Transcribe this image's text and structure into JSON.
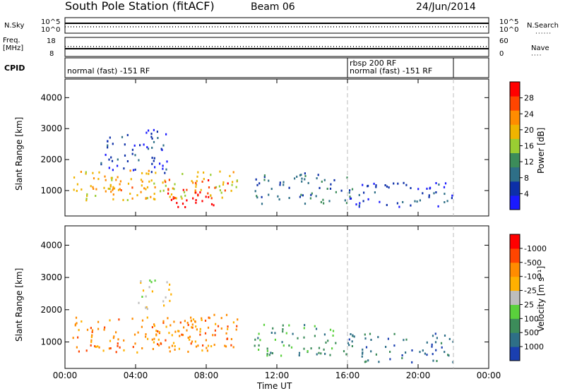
{
  "header": {
    "title": "South Pole Station (fitACF)",
    "beam": "Beam 06",
    "date": "24/Jun/2014"
  },
  "panels": {
    "nsky_label": "N.Sky",
    "nsearch_label": "N.Search",
    "nsky_ticks": [
      "10^5",
      "10^0"
    ],
    "nsearch_ticks": [
      "10^5",
      "10^0"
    ],
    "freq_label_1": "Freq.",
    "freq_label_2": "[MHz]",
    "freq_ticks": [
      "18",
      "8"
    ],
    "nave_label": "Nave",
    "nave_ticks": [
      "60",
      "0"
    ],
    "cpid_label": "CPID",
    "cpid_segments": [
      "normal (fast) -151 RF",
      "rbsp 200 RF",
      "normal (fast) -151 RF"
    ]
  },
  "chart_data": [
    {
      "type": "heatmap",
      "name": "power",
      "xlabel": "Time UT",
      "ylabel": "Slant Range [km]",
      "xticks": [
        "00:00",
        "04:00",
        "08:00",
        "12:00",
        "16:00",
        "20:00",
        "00:00"
      ],
      "yticks": [
        "1000",
        "2000",
        "3000",
        "4000"
      ],
      "ylim": [
        180,
        4600
      ],
      "xlim_hours": [
        0,
        24
      ],
      "colorbar_label": "Power [dB]",
      "colorbar_ticks": [
        "4",
        "8",
        "12",
        "16",
        "20",
        "24",
        "28"
      ],
      "colors": [
        "#1a1aff",
        "#0c2fa8",
        "#2e6f87",
        "#3c8c5a",
        "#9acd32",
        "#f0b400",
        "#ff8c00",
        "#ff4500",
        "#ff0000"
      ],
      "regions": [
        {
          "t0": 0.4,
          "t1": 9.8,
          "r0": 700,
          "r1": 1700,
          "level": 5
        },
        {
          "t0": 5.8,
          "t1": 9.2,
          "r0": 500,
          "r1": 1400,
          "level": 8
        },
        {
          "t0": 2.2,
          "t1": 6.0,
          "r0": 900,
          "r1": 1500,
          "level": 6
        },
        {
          "t0": 2.0,
          "t1": 5.8,
          "r0": 1600,
          "r1": 3000,
          "level": 1
        },
        {
          "t0": 10.7,
          "t1": 16.3,
          "r0": 600,
          "r1": 1600,
          "level": 2
        },
        {
          "t0": 16.0,
          "t1": 22.0,
          "r0": 500,
          "r1": 1300,
          "level": 1
        }
      ]
    },
    {
      "type": "heatmap",
      "name": "velocity",
      "xlabel": "Time UT",
      "ylabel": "Slant Range [km]",
      "xticks": [
        "00:00",
        "04:00",
        "08:00",
        "12:00",
        "16:00",
        "20:00",
        "00:00"
      ],
      "yticks": [
        "1000",
        "2000",
        "3000",
        "4000"
      ],
      "ylim": [
        180,
        4600
      ],
      "xlim_hours": [
        0,
        24
      ],
      "colorbar_label": "Velocity [m s⁻¹]",
      "colorbar_ticks": [
        "1000",
        "500",
        "100",
        "25",
        "-25",
        "-100",
        "-500",
        "-1000"
      ],
      "colors": [
        "#1a3fb0",
        "#2e6f87",
        "#3c8c5a",
        "#5ad13c",
        "#bdbdbd",
        "#ffb000",
        "#ff8c00",
        "#ff4500",
        "#ff0000"
      ],
      "regions": [
        {
          "t0": 0.4,
          "t1": 9.8,
          "r0": 700,
          "r1": 1800,
          "level": 6
        },
        {
          "t0": 5.0,
          "t1": 9.4,
          "r0": 900,
          "r1": 1900,
          "level": 6
        },
        {
          "t0": 4.0,
          "t1": 6.0,
          "r0": 2000,
          "r1": 3000,
          "level": 4
        },
        {
          "t0": 10.7,
          "t1": 16.3,
          "r0": 600,
          "r1": 1600,
          "level": 2
        },
        {
          "t0": 16.0,
          "t1": 22.0,
          "r0": 400,
          "r1": 1300,
          "level": 1
        }
      ]
    }
  ]
}
